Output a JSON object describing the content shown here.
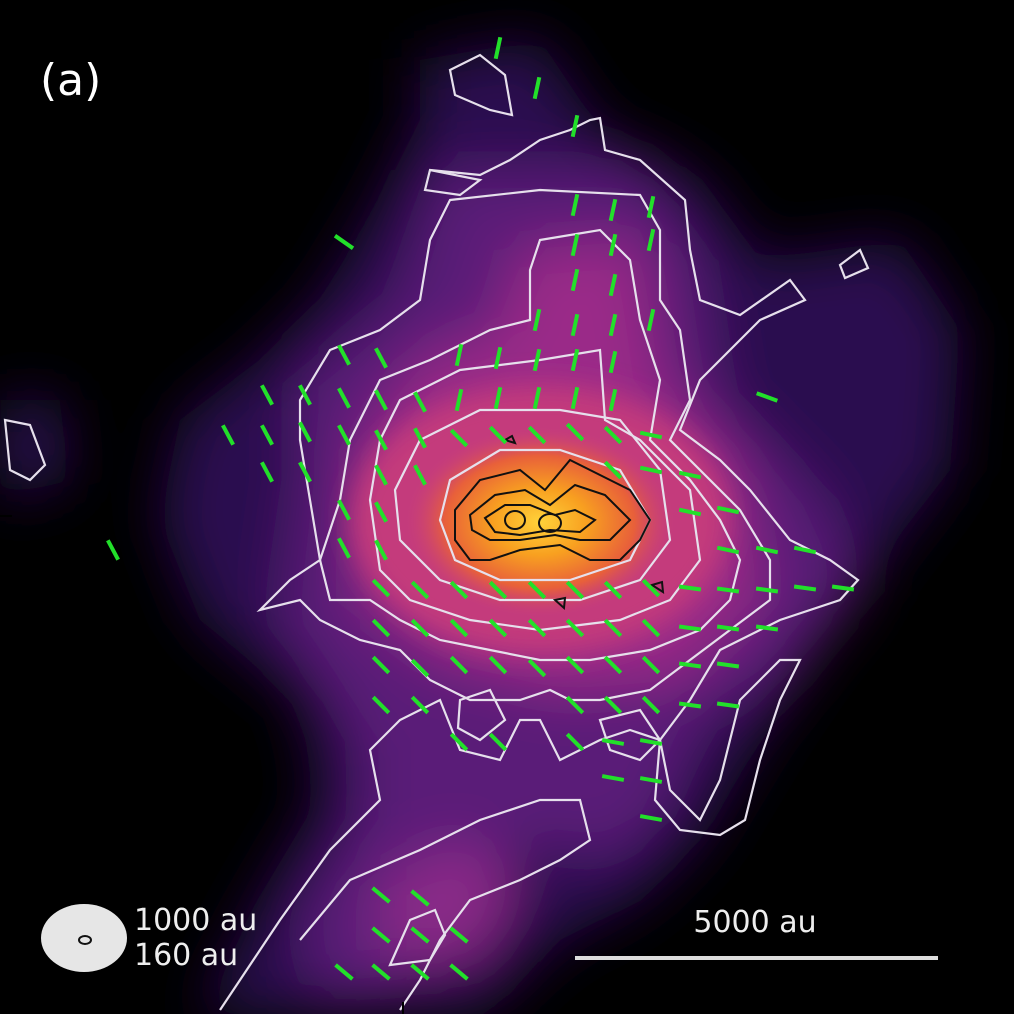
{
  "panel_label": "(a)",
  "beam_labels": [
    "1000 au",
    "160 au"
  ],
  "scale_bar": {
    "label": "5000 au"
  }
}
